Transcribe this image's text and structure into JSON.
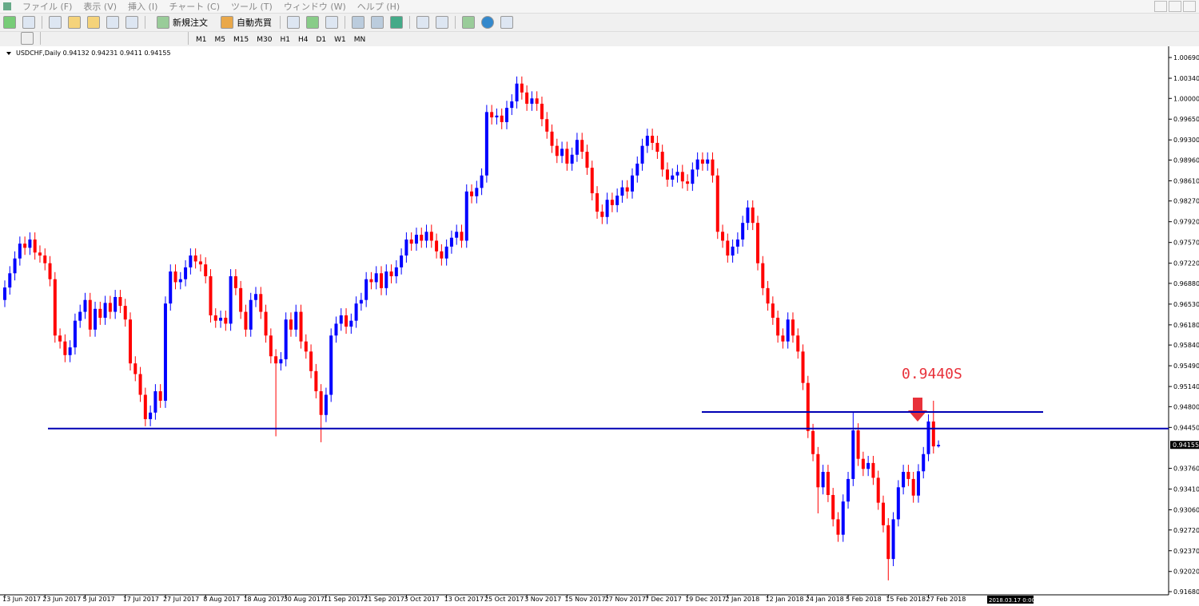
{
  "menu": [
    "ファイル (F)",
    "表示 (V)",
    "挿入 (I)",
    "チャート (C)",
    "ツール (T)",
    "ウィンドウ (W)",
    "ヘルプ (H)"
  ],
  "toolbar": {
    "new_order": "新規注文",
    "auto_trade": "自動売買",
    "timeframes": [
      "M1",
      "M5",
      "M15",
      "M30",
      "H1",
      "H4",
      "D1",
      "W1",
      "MN"
    ]
  },
  "chart_data": {
    "type": "candlestick",
    "symbol": "USDCHF,Daily",
    "up_color": "#0000ff",
    "down_color": "#ff0000",
    "categories": [
      "13 Jun 2017",
      null,
      null,
      null,
      null,
      null,
      null,
      null,
      "23 Jun 2017",
      null,
      null,
      null,
      null,
      null,
      null,
      null,
      "5 Jul 2017",
      null,
      null,
      null,
      null,
      null,
      null,
      null,
      "17 Jul 2017",
      null,
      null,
      null,
      null,
      null,
      null,
      null,
      "27 Jul 2017",
      null,
      null,
      null,
      null,
      null,
      null,
      null,
      "8 Aug 2017",
      null,
      null,
      null,
      null,
      null,
      null,
      null,
      "18 Aug 2017",
      null,
      null,
      null,
      null,
      null,
      null,
      null,
      "30 Aug 2017",
      null,
      null,
      null,
      null,
      null,
      null,
      null,
      "11 Sep 2017",
      null,
      null,
      null,
      null,
      null,
      null,
      null,
      "21 Sep 2017",
      null,
      null,
      null,
      null,
      null,
      null,
      null,
      "3 Oct 2017",
      null,
      null,
      null,
      null,
      null,
      null,
      null,
      "13 Oct 2017",
      null,
      null,
      null,
      null,
      null,
      null,
      null,
      "25 Oct 2017",
      null,
      null,
      null,
      null,
      null,
      null,
      null,
      "3 Nov 2017",
      null,
      null,
      null,
      null,
      null,
      null,
      null,
      "15 Nov 2017",
      null,
      null,
      null,
      null,
      null,
      null,
      null,
      "27 Nov 2017",
      null,
      null,
      null,
      null,
      null,
      null,
      null,
      "7 Dec 2017",
      null,
      null,
      null,
      null,
      null,
      null,
      null,
      "19 Dec 2017",
      null,
      null,
      null,
      null,
      null,
      null,
      null,
      "2 Jan 2018",
      null,
      null,
      null,
      null,
      null,
      null,
      null,
      "12 Jan 2018",
      null,
      null,
      null,
      null,
      null,
      null,
      null,
      "24 Jan 2018",
      null,
      null,
      null,
      null,
      null,
      null,
      null,
      "5 Feb 2018",
      null,
      null,
      null,
      null,
      null,
      null,
      null,
      "15 Feb 2018",
      null,
      null,
      null,
      null,
      null,
      null,
      null,
      "27 Feb 2018",
      null,
      null
    ],
    "open": [
      0.966,
      0.9681,
      0.9705,
      0.973,
      0.9755,
      0.9748,
      0.9762,
      0.974,
      0.9735,
      0.9722,
      0.9695,
      0.96,
      0.959,
      0.9567,
      0.958,
      0.9625,
      0.964,
      0.966,
      0.961,
      0.9645,
      0.963,
      0.9655,
      0.964,
      0.9665,
      0.965,
      0.9627,
      0.9553,
      0.9535,
      0.95,
      0.9459,
      0.947,
      0.9506,
      0.949,
      0.9654,
      0.9708,
      0.969,
      0.9695,
      0.9715,
      0.9735,
      0.9725,
      0.972,
      0.97,
      0.9634,
      0.9625,
      0.963,
      0.962,
      0.97,
      0.968,
      0.964,
      0.961,
      0.966,
      0.967,
      0.964,
      0.96,
      0.9565,
      0.9553,
      0.956,
      0.9627,
      0.961,
      0.964,
      0.959,
      0.9573,
      0.954,
      0.9506,
      0.9466,
      0.95,
      0.96,
      0.962,
      0.9634,
      0.9615,
      0.9625,
      0.9654,
      0.966,
      0.9695,
      0.969,
      0.9705,
      0.968,
      0.9708,
      0.97,
      0.9715,
      0.9735,
      0.9762,
      0.9755,
      0.977,
      0.976,
      0.9775,
      0.976,
      0.9742,
      0.973,
      0.975,
      0.9765,
      0.9775,
      0.976,
      0.9843,
      0.9835,
      0.9849,
      0.987,
      0.9977,
      0.9968,
      0.9971,
      0.996,
      0.9984,
      0.9995,
      1.0025,
      1.001,
      0.9991,
      1.0,
      0.9991,
      0.9965,
      0.9944,
      0.992,
      0.9903,
      0.9915,
      0.989,
      0.9905,
      0.993,
      0.991,
      0.9883,
      0.984,
      0.9809,
      0.98,
      0.9829,
      0.982,
      0.9836,
      0.985,
      0.9843,
      0.987,
      0.989,
      0.992,
      0.9937,
      0.9925,
      0.991,
      0.988,
      0.9863,
      0.987,
      0.9876,
      0.986,
      0.9856,
      0.988,
      0.9897,
      0.989,
      0.9897,
      0.987,
      0.9775,
      0.976,
      0.9735,
      0.975,
      0.9762,
      0.979,
      0.9816,
      0.979,
      0.9722,
      0.968,
      0.9654,
      0.963,
      0.96,
      0.959,
      0.9627,
      0.96,
      0.9573,
      0.952,
      0.9439,
      0.94,
      0.9344,
      0.937,
      0.9331,
      0.929,
      0.9264,
      0.932,
      0.9358,
      0.944,
      0.9392,
      0.9375,
      0.9385,
      0.936,
      0.9318,
      0.928,
      0.9223,
      0.929,
      0.9344,
      0.937,
      0.9358,
      0.933,
      0.9371,
      0.94,
      0.9455,
      0.94132
    ],
    "high": [
      0.9693,
      0.9717,
      0.9742,
      0.9767,
      0.9767,
      0.9774,
      0.9774,
      0.9752,
      0.9747,
      0.9734,
      0.9707,
      0.9612,
      0.9602,
      0.9592,
      0.9637,
      0.9652,
      0.9672,
      0.9672,
      0.9657,
      0.9657,
      0.9667,
      0.9667,
      0.9677,
      0.9677,
      0.9662,
      0.9639,
      0.9565,
      0.9547,
      0.9512,
      0.9482,
      0.9518,
      0.9518,
      0.9666,
      0.972,
      0.972,
      0.9707,
      0.9727,
      0.9747,
      0.9747,
      0.9737,
      0.9732,
      0.9712,
      0.9646,
      0.9642,
      0.9642,
      0.9712,
      0.9712,
      0.9692,
      0.9652,
      0.9672,
      0.9682,
      0.9682,
      0.9652,
      0.9612,
      0.9577,
      0.9572,
      0.9639,
      0.9639,
      0.9652,
      0.9652,
      0.9602,
      0.9585,
      0.9552,
      0.9518,
      0.9512,
      0.9612,
      0.9632,
      0.9646,
      0.9646,
      0.9637,
      0.9666,
      0.9672,
      0.9707,
      0.9707,
      0.9717,
      0.9717,
      0.972,
      0.972,
      0.9727,
      0.9747,
      0.9774,
      0.9774,
      0.9782,
      0.9782,
      0.9787,
      0.9787,
      0.9772,
      0.9754,
      0.9762,
      0.9777,
      0.9787,
      0.9787,
      0.9855,
      0.9855,
      0.9861,
      0.9882,
      0.9989,
      0.9989,
      0.9983,
      0.9983,
      0.9996,
      1.0007,
      1.0037,
      1.0037,
      1.0022,
      1.0012,
      1.0012,
      1.0003,
      0.9977,
      0.9956,
      0.9932,
      0.9927,
      0.9927,
      0.9917,
      0.9942,
      0.9942,
      0.9922,
      0.9895,
      0.9852,
      0.9821,
      0.9841,
      0.9841,
      0.9848,
      0.9862,
      0.9862,
      0.9882,
      0.9902,
      0.9932,
      0.9949,
      0.9949,
      0.9937,
      0.9922,
      0.9892,
      0.9882,
      0.9888,
      0.9888,
      0.9872,
      0.9892,
      0.9909,
      0.9909,
      0.9909,
      0.9909,
      0.9882,
      0.9787,
      0.9772,
      0.9762,
      0.9774,
      0.9802,
      0.9828,
      0.9828,
      0.9802,
      0.9734,
      0.9692,
      0.9666,
      0.9642,
      0.9612,
      0.9639,
      0.9639,
      0.9612,
      0.9585,
      0.9532,
      0.9451,
      0.9412,
      0.9382,
      0.9382,
      0.9343,
      0.9302,
      0.9332,
      0.937,
      0.947,
      0.9452,
      0.9404,
      0.9397,
      0.9397,
      0.9372,
      0.933,
      0.9292,
      0.9302,
      0.9356,
      0.9382,
      0.9382,
      0.937,
      0.9383,
      0.9412,
      0.9467,
      0.949,
      0.94231
    ],
    "low": [
      0.9648,
      0.9669,
      0.9693,
      0.9718,
      0.9736,
      0.9736,
      0.9728,
      0.9723,
      0.971,
      0.9683,
      0.9588,
      0.9578,
      0.9555,
      0.9555,
      0.9568,
      0.9613,
      0.9628,
      0.9598,
      0.9598,
      0.9618,
      0.9618,
      0.9628,
      0.9628,
      0.9638,
      0.9615,
      0.9541,
      0.9523,
      0.9488,
      0.9447,
      0.9447,
      0.9458,
      0.9478,
      0.9478,
      0.9642,
      0.9678,
      0.9678,
      0.9683,
      0.9703,
      0.9713,
      0.9708,
      0.9688,
      0.9622,
      0.9613,
      0.9613,
      0.9608,
      0.9608,
      0.9668,
      0.9628,
      0.9598,
      0.9598,
      0.9648,
      0.9628,
      0.9588,
      0.9553,
      0.943,
      0.9541,
      0.9548,
      0.9598,
      0.9598,
      0.9578,
      0.9561,
      0.9528,
      0.9494,
      0.942,
      0.9454,
      0.9488,
      0.9588,
      0.9608,
      0.9603,
      0.9603,
      0.9613,
      0.9642,
      0.9648,
      0.9678,
      0.9678,
      0.9668,
      0.9668,
      0.9688,
      0.9688,
      0.9703,
      0.9723,
      0.9743,
      0.9743,
      0.9748,
      0.9748,
      0.9748,
      0.973,
      0.9718,
      0.9718,
      0.9738,
      0.9753,
      0.9748,
      0.9748,
      0.9823,
      0.9823,
      0.9837,
      0.9858,
      0.9956,
      0.9956,
      0.9948,
      0.9948,
      0.9972,
      0.9983,
      0.9998,
      0.9979,
      0.9979,
      0.9979,
      0.9953,
      0.9932,
      0.9908,
      0.9891,
      0.9891,
      0.9878,
      0.9878,
      0.9893,
      0.9898,
      0.9871,
      0.9828,
      0.9797,
      0.9788,
      0.9788,
      0.9808,
      0.9808,
      0.9824,
      0.9831,
      0.9831,
      0.9858,
      0.9878,
      0.9908,
      0.9913,
      0.9898,
      0.9868,
      0.9851,
      0.9851,
      0.9858,
      0.9848,
      0.9844,
      0.9844,
      0.9868,
      0.9878,
      0.9878,
      0.9858,
      0.9763,
      0.9748,
      0.9723,
      0.9723,
      0.9738,
      0.975,
      0.9778,
      0.9778,
      0.971,
      0.9668,
      0.9642,
      0.9618,
      0.9588,
      0.9578,
      0.9578,
      0.9588,
      0.9561,
      0.9508,
      0.9427,
      0.9388,
      0.93,
      0.9332,
      0.9319,
      0.9278,
      0.9252,
      0.9252,
      0.9308,
      0.9346,
      0.938,
      0.9363,
      0.9363,
      0.9348,
      0.9306,
      0.9268,
      0.9187,
      0.9211,
      0.9278,
      0.9332,
      0.9346,
      0.9318,
      0.9318,
      0.9359,
      0.9388,
      0.9401,
      0.9411
    ],
    "close": [
      0.9681,
      0.9705,
      0.973,
      0.9755,
      0.9748,
      0.9762,
      0.974,
      0.9735,
      0.9722,
      0.9695,
      0.96,
      0.959,
      0.9567,
      0.958,
      0.9625,
      0.964,
      0.966,
      0.961,
      0.9645,
      0.963,
      0.9655,
      0.964,
      0.9665,
      0.965,
      0.9627,
      0.9553,
      0.9535,
      0.95,
      0.9459,
      0.947,
      0.9506,
      0.949,
      0.9654,
      0.9708,
      0.969,
      0.9695,
      0.9715,
      0.9735,
      0.9725,
      0.972,
      0.97,
      0.9634,
      0.9625,
      0.963,
      0.962,
      0.97,
      0.968,
      0.964,
      0.961,
      0.966,
      0.967,
      0.964,
      0.96,
      0.9565,
      0.9553,
      0.956,
      0.9627,
      0.961,
      0.964,
      0.959,
      0.9573,
      0.954,
      0.9506,
      0.9466,
      0.95,
      0.96,
      0.962,
      0.9634,
      0.9615,
      0.9625,
      0.9654,
      0.966,
      0.9695,
      0.969,
      0.9705,
      0.968,
      0.9708,
      0.97,
      0.9715,
      0.9735,
      0.9762,
      0.9755,
      0.977,
      0.976,
      0.9775,
      0.976,
      0.9742,
      0.973,
      0.975,
      0.9765,
      0.9775,
      0.976,
      0.9843,
      0.9835,
      0.9849,
      0.987,
      0.9977,
      0.9968,
      0.9971,
      0.996,
      0.9984,
      0.9995,
      1.0025,
      1.001,
      0.9991,
      1.0,
      0.9991,
      0.9965,
      0.9944,
      0.992,
      0.9903,
      0.9915,
      0.989,
      0.9905,
      0.993,
      0.991,
      0.9883,
      0.984,
      0.9809,
      0.98,
      0.9829,
      0.982,
      0.9836,
      0.985,
      0.9843,
      0.987,
      0.989,
      0.992,
      0.9937,
      0.9925,
      0.991,
      0.988,
      0.9863,
      0.987,
      0.9876,
      0.986,
      0.9856,
      0.988,
      0.9897,
      0.989,
      0.9897,
      0.987,
      0.9775,
      0.976,
      0.9735,
      0.975,
      0.9762,
      0.979,
      0.9816,
      0.979,
      0.9722,
      0.968,
      0.9654,
      0.963,
      0.96,
      0.959,
      0.9627,
      0.96,
      0.9573,
      0.952,
      0.9439,
      0.94,
      0.9344,
      0.937,
      0.9331,
      0.929,
      0.9264,
      0.932,
      0.9358,
      0.944,
      0.9392,
      0.9375,
      0.9385,
      0.936,
      0.9318,
      0.928,
      0.9223,
      0.929,
      0.9344,
      0.937,
      0.9358,
      0.933,
      0.9371,
      0.94,
      0.9455,
      0.9413,
      0.94155
    ],
    "ylim": [
      0.91626,
      1.00825
    ],
    "yticks": [
      {
        "value": 1.0069,
        "label": "1.00690"
      },
      {
        "value": 1.0034,
        "label": "1.00340"
      },
      {
        "value": 1,
        "label": "1.00000"
      },
      {
        "value": 0.9965,
        "label": "0.99650"
      },
      {
        "value": 0.993,
        "label": "0.99300"
      },
      {
        "value": 0.9896,
        "label": "0.98960"
      },
      {
        "value": 0.9861,
        "label": "0.98610"
      },
      {
        "value": 0.9827,
        "label": "0.98270"
      },
      {
        "value": 0.9792,
        "label": "0.97920"
      },
      {
        "value": 0.9757,
        "label": "0.97570"
      },
      {
        "value": 0.9722,
        "label": "0.97220"
      },
      {
        "value": 0.9688,
        "label": "0.96880"
      },
      {
        "value": 0.9653,
        "label": "0.96530"
      },
      {
        "value": 0.9618,
        "label": "0.96180"
      },
      {
        "value": 0.9584,
        "label": "0.95840"
      },
      {
        "value": 0.9549,
        "label": "0.95490"
      },
      {
        "value": 0.9514,
        "label": "0.95140"
      },
      {
        "value": 0.948,
        "label": "0.94800"
      },
      {
        "value": 0.9445,
        "label": "0.94450"
      },
      {
        "value": 0.9376,
        "label": "0.93760"
      },
      {
        "value": 0.9341,
        "label": "0.93410"
      },
      {
        "value": 0.9306,
        "label": "0.93060"
      },
      {
        "value": 0.9272,
        "label": "0.92720"
      },
      {
        "value": 0.9237,
        "label": "0.92370"
      },
      {
        "value": 0.9202,
        "label": "0.92020"
      },
      {
        "value": 0.9168,
        "label": "0.91680"
      }
    ],
    "last_price": 0.94155,
    "hlines": [
      {
        "value": 0.9443,
        "color": "#0000b4"
      },
      {
        "value": 0.9471,
        "color": "#0000b4"
      }
    ],
    "annotation": {
      "text": "0.9440S",
      "color": "#e8313a"
    },
    "cursor_time": "2018.03.17 0:00"
  }
}
